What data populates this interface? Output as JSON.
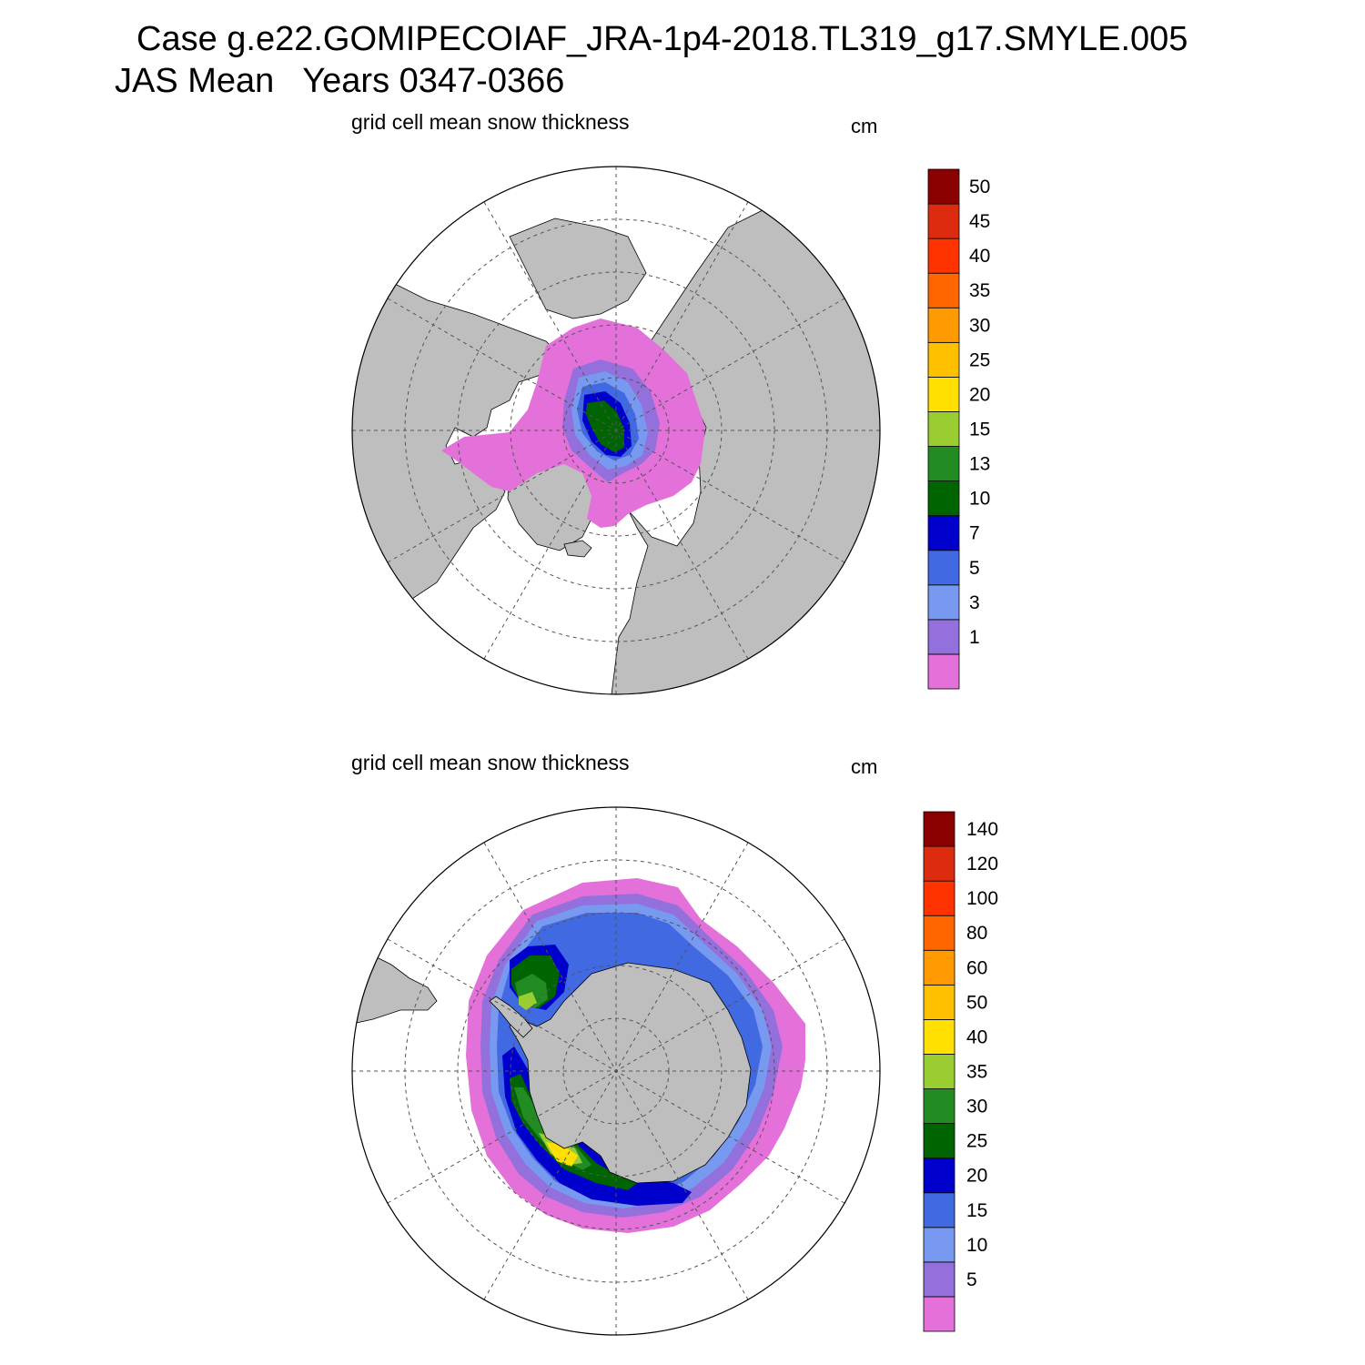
{
  "title": {
    "line1": "Case g.e22.GOMIPECOIAF_JRA-1p4-2018.TL319_g17.SMYLE.005",
    "line2": "JAS Mean   Years 0347-0366"
  },
  "colors": {
    "land": "#bebebe",
    "grid": "#555555",
    "levels": [
      "#e371d9",
      "#9370db",
      "#7799f0",
      "#4169e1",
      "#0000cd",
      "#006400",
      "#228b22",
      "#9acd32",
      "#ffe000",
      "#ffc000",
      "#ff9a00",
      "#ff6600",
      "#ff3300",
      "#dd2b10",
      "#8b0000"
    ]
  },
  "panels": [
    {
      "id": "north",
      "title": "grid cell mean snow thickness",
      "units": "cm",
      "hemisphere": "Arctic (north polar stereographic)",
      "colorbar_labels": [
        "1",
        "3",
        "5",
        "7",
        "10",
        "13",
        "15",
        "20",
        "25",
        "30",
        "35",
        "40",
        "45",
        "50"
      ]
    },
    {
      "id": "south",
      "title": "grid cell mean snow thickness",
      "units": "cm",
      "hemisphere": "Antarctic (south polar stereographic)",
      "colorbar_labels": [
        "5",
        "10",
        "15",
        "20",
        "25",
        "30",
        "35",
        "40",
        "50",
        "60",
        "80",
        "100",
        "120",
        "140"
      ]
    }
  ]
}
